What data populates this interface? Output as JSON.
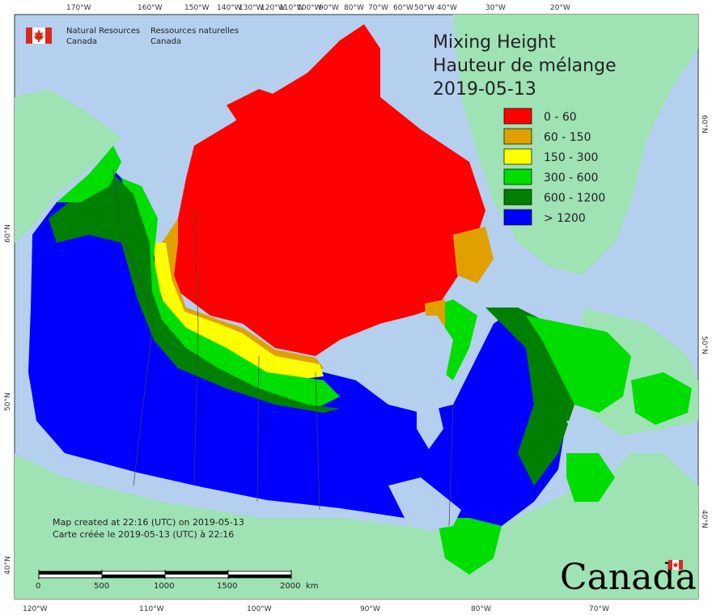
{
  "agency": {
    "name_en_line1": "Natural Resources",
    "name_en_line2": "Canada",
    "name_fr_line1": "Ressources naturelles",
    "name_fr_line2": "Canada"
  },
  "title": {
    "line1": "Mixing Height",
    "line2": "Hauteur de mélange",
    "date": "2019-05-13"
  },
  "legend": [
    {
      "label": "0 - 60",
      "color": "#ff0000"
    },
    {
      "label": "60 - 150",
      "color": "#e0a000"
    },
    {
      "label": "150 - 300",
      "color": "#ffff00"
    },
    {
      "label": "300 - 600",
      "color": "#00dd00"
    },
    {
      "label": "600 - 1200",
      "color": "#008000"
    },
    {
      "label": "> 1200",
      "color": "#0000ff"
    }
  ],
  "notes": {
    "en": "Map created at 22:16 (UTC) on 2019-05-13",
    "fr": "Carte créée le 2019-05-13 (UTC) à 22:16"
  },
  "scale_bar": {
    "ticks": [
      "0",
      "500",
      "1000",
      "1500",
      "2000"
    ],
    "unit": "km"
  },
  "wordmark": "Canada",
  "graticule": {
    "top": [
      "170°W",
      "160°W",
      "150°W",
      "140°W",
      "130°W",
      "120°W",
      "110°W",
      "100°W",
      "90°W",
      "80°W",
      "70°W",
      "60°W",
      "50°W",
      "40°W",
      "30°W",
      "20°W"
    ],
    "bottom": [
      "120°W",
      "110°W",
      "100°W",
      "90°W",
      "80°W",
      "70°W"
    ],
    "left": [
      "60°N",
      "50°N",
      "40°N"
    ],
    "right": [
      "60°N",
      "50°N",
      "40°N"
    ]
  },
  "colors": {
    "ocean": "#b4d0ee",
    "land": "#9fe2b4",
    "lake": "#b4d0ee"
  }
}
